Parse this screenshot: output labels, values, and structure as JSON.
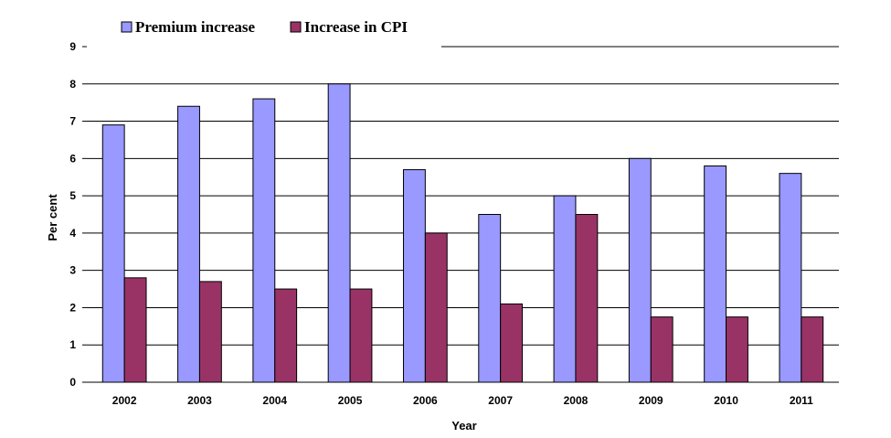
{
  "chart_data": {
    "type": "bar",
    "title": "",
    "xlabel": "Year",
    "ylabel": "Per cent",
    "categories": [
      "2002",
      "2003",
      "2004",
      "2005",
      "2006",
      "2007",
      "2008",
      "2009",
      "2010",
      "2011"
    ],
    "series": [
      {
        "name": "Premium increase",
        "color": "#9999ff",
        "values": [
          6.9,
          7.4,
          7.6,
          8.0,
          5.7,
          4.5,
          5.0,
          6.0,
          5.8,
          5.6
        ]
      },
      {
        "name": "Increase in CPI",
        "color": "#993366",
        "values": [
          2.8,
          2.7,
          2.5,
          2.5,
          4.0,
          2.1,
          4.5,
          1.75,
          1.75,
          1.75
        ]
      }
    ],
    "ylim": [
      0,
      9
    ],
    "yticks": [
      "0",
      "1",
      "2",
      "3",
      "4",
      "5",
      "6",
      "7",
      "8",
      "9"
    ],
    "grid": true,
    "legend_position": "top-left"
  }
}
